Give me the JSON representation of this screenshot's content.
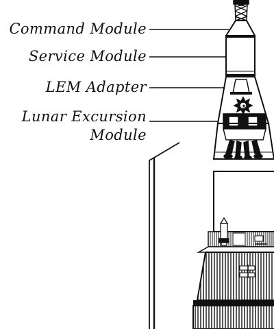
{
  "labels": {
    "command_module": "Command Module",
    "service_module": "Service Module",
    "lem_adapter": "LEM Adapter",
    "lunar_excursion_line1": "Lunar Excursion",
    "lunar_excursion_line2": "Module"
  },
  "colors": {
    "ink": "#111111",
    "background": "#ffffff"
  }
}
